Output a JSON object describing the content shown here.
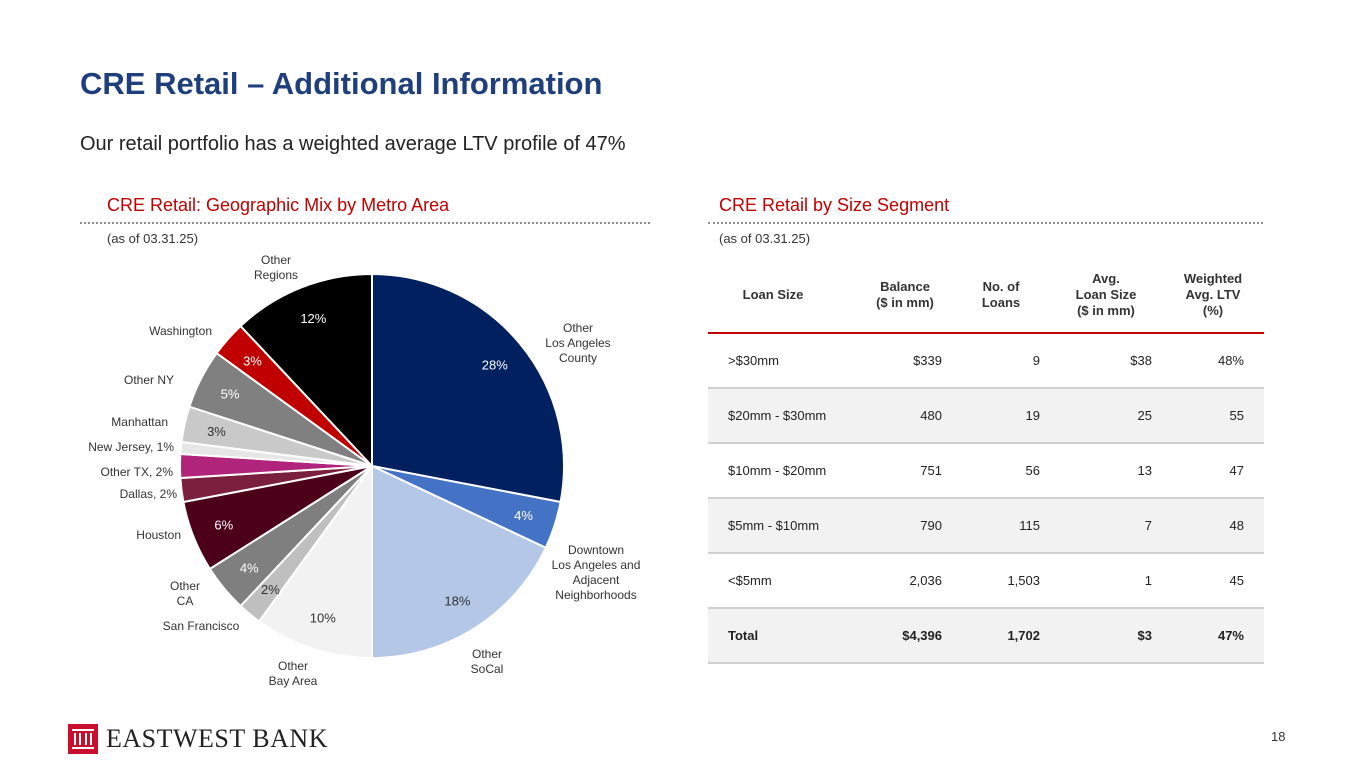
{
  "header": {
    "title": "CRE Retail – Additional Information",
    "subtitle": "Our retail portfolio has a weighted average LTV profile of 47%"
  },
  "left_panel": {
    "heading": "CRE Retail: Geographic Mix by Metro Area",
    "as_of": "(as of 03.31.25)"
  },
  "right_panel": {
    "heading": "CRE Retail by Size Segment",
    "as_of": "(as of 03.31.25)"
  },
  "chart_data": [
    {
      "type": "pie",
      "title": "CRE Retail: Geographic Mix by Metro Area",
      "slices": [
        {
          "label": "Other\nLos Angeles\nCounty",
          "value": 28,
          "pct_label": "28%",
          "color": "#002060"
        },
        {
          "label": "Downtown\nLos Angeles and\nAdjacent\nNeighborhoods",
          "value": 4,
          "pct_label": "4%",
          "color": "#4472c4"
        },
        {
          "label": "Other\nSoCal",
          "value": 18,
          "pct_label": "18%",
          "color": "#b4c7e7"
        },
        {
          "label": "Other\nBay Area",
          "value": 10,
          "pct_label": "10%",
          "color": "#f2f2f2"
        },
        {
          "label": "San Francisco",
          "value": 2,
          "pct_label": "2%",
          "color": "#bfbfbf"
        },
        {
          "label": "Other\nCA",
          "value": 4,
          "pct_label": "4%",
          "color": "#7f7f7f"
        },
        {
          "label": "Houston",
          "value": 6,
          "pct_label": "6%",
          "color": "#4d0019"
        },
        {
          "label": "Dallas, 2%",
          "value": 2,
          "pct_label": "",
          "color": "#7b1f3f"
        },
        {
          "label": "Other TX, 2%",
          "value": 2,
          "pct_label": "",
          "color": "#b0247b"
        },
        {
          "label": "New Jersey, 1%",
          "value": 1,
          "pct_label": "",
          "color": "#e7e6e6"
        },
        {
          "label": "Manhattan",
          "value": 3,
          "pct_label": "3%",
          "color": "#c9c9c9"
        },
        {
          "label": "Other NY",
          "value": 5,
          "pct_label": "5%",
          "color": "#808080"
        },
        {
          "label": "Washington",
          "value": 3,
          "pct_label": "3%",
          "color": "#c00000"
        },
        {
          "label": "Other\nRegions",
          "value": 12,
          "pct_label": "12%",
          "color": "#000000"
        }
      ]
    },
    {
      "type": "table",
      "title": "CRE Retail by Size Segment",
      "columns": [
        "Loan Size",
        "Balance\n($ in mm)",
        "No. of\nLoans",
        "Avg.\nLoan Size\n($ in mm)",
        "Weighted\nAvg. LTV\n(%)"
      ],
      "rows": [
        [
          ">$30mm",
          "$339",
          "9",
          "$38",
          "48%"
        ],
        [
          "$20mm - $30mm",
          "480",
          "19",
          "25",
          "55"
        ],
        [
          "$10mm - $20mm",
          "751",
          "56",
          "13",
          "47"
        ],
        [
          "$5mm - $10mm",
          "790",
          "115",
          "7",
          "48"
        ],
        [
          "<$5mm",
          "2,036",
          "1,503",
          "1",
          "45"
        ]
      ],
      "total": [
        "Total",
        "$4,396",
        "1,702",
        "$3",
        "47%"
      ]
    }
  ],
  "footer": {
    "brand": "EASTWEST BANK",
    "page_number": "18"
  }
}
